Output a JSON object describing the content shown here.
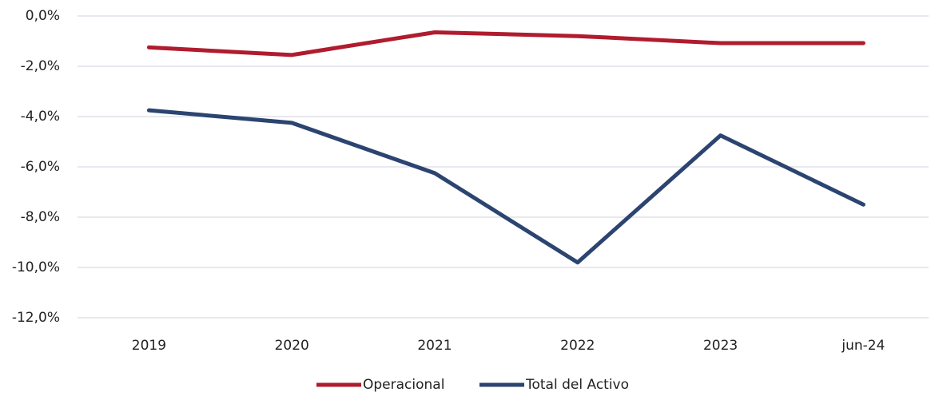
{
  "chart_data": {
    "type": "line",
    "categories": [
      "2019",
      "2020",
      "2021",
      "2022",
      "2023",
      "jun-24"
    ],
    "series": [
      {
        "name": "Operacional",
        "color": "#b01c2e",
        "values": [
          -1.25,
          -1.55,
          -0.65,
          -0.8,
          -1.08,
          -1.08
        ]
      },
      {
        "name": "Total del Activo",
        "color": "#2b4470",
        "values": [
          -3.75,
          -4.25,
          -6.25,
          -9.8,
          -4.75,
          -7.5
        ]
      }
    ],
    "ylim": [
      -12,
      0
    ],
    "yticks": [
      {
        "value": 0,
        "label": "0,0%"
      },
      {
        "value": -2,
        "label": "-2,0%"
      },
      {
        "value": -4,
        "label": "-4,0%"
      },
      {
        "value": -6,
        "label": "-6,0%"
      },
      {
        "value": -8,
        "label": "-8,0%"
      },
      {
        "value": -10,
        "label": "-10,0%"
      },
      {
        "value": -12,
        "label": "-12,0%"
      }
    ],
    "grid": true,
    "legend": "bottom"
  }
}
